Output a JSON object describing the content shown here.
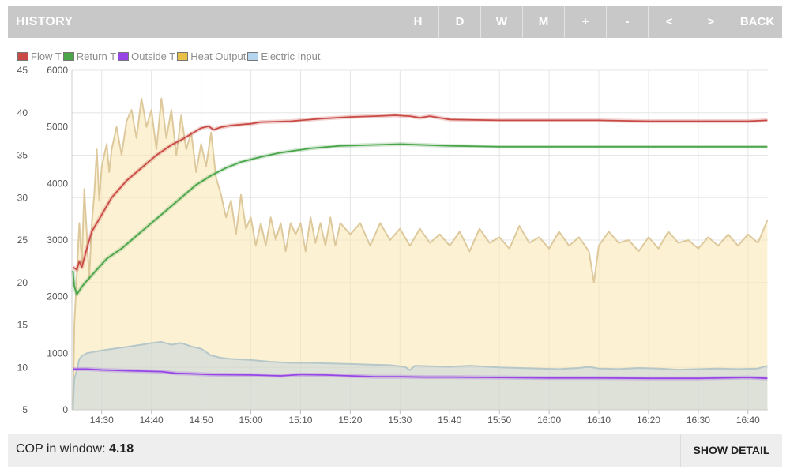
{
  "header": {
    "title": "HISTORY",
    "buttons": [
      "H",
      "D",
      "W",
      "M",
      "+",
      "-",
      "<",
      ">",
      "BACK"
    ]
  },
  "legend": [
    {
      "label": "Flow T",
      "color": "#c94a44"
    },
    {
      "label": "Return T",
      "color": "#4aa54a"
    },
    {
      "label": "Outside T",
      "color": "#9845e8"
    },
    {
      "label": "Heat Output",
      "color": "#e8c048"
    },
    {
      "label": "Electric Input",
      "color": "#b5d4ee"
    }
  ],
  "footer": {
    "cop_label": "COP in window:",
    "cop_value": "4.18",
    "show_detail": "SHOW DETAIL"
  },
  "chart_data": {
    "type": "line",
    "x_axis": {
      "unit": "minutes",
      "range": [
        864,
        1004
      ],
      "ticks": [
        {
          "label": "14:30",
          "value": 870
        },
        {
          "label": "14:40",
          "value": 880
        },
        {
          "label": "14:50",
          "value": 890
        },
        {
          "label": "15:00",
          "value": 900
        },
        {
          "label": "15:10",
          "value": 910
        },
        {
          "label": "15:20",
          "value": 920
        },
        {
          "label": "15:30",
          "value": 930
        },
        {
          "label": "15:40",
          "value": 940
        },
        {
          "label": "15:50",
          "value": 950
        },
        {
          "label": "16:00",
          "value": 960
        },
        {
          "label": "16:10",
          "value": 970
        },
        {
          "label": "16:20",
          "value": 980
        },
        {
          "label": "16:30",
          "value": 990
        },
        {
          "label": "16:40",
          "value": 1000
        }
      ]
    },
    "y_left": {
      "range": [
        5,
        45
      ],
      "ticks": [
        5,
        10,
        15,
        20,
        25,
        30,
        35,
        40,
        45
      ]
    },
    "y_right": {
      "range": [
        0,
        6000
      ],
      "ticks": [
        0,
        1000,
        2000,
        3000,
        4000,
        5000,
        6000
      ]
    },
    "grid": true,
    "legend_position": "top-left",
    "series": [
      {
        "name": "Flow T",
        "axis": "left",
        "color": "#c94a44",
        "points": [
          [
            864.2,
            21.8
          ],
          [
            865,
            21.5
          ],
          [
            865.5,
            22.5
          ],
          [
            866,
            21.8
          ],
          [
            867,
            24
          ],
          [
            868,
            26
          ],
          [
            870,
            28
          ],
          [
            872,
            30
          ],
          [
            875,
            32
          ],
          [
            878,
            33.5
          ],
          [
            881,
            35
          ],
          [
            884,
            36.2
          ],
          [
            886,
            36.8
          ],
          [
            888,
            37.5
          ],
          [
            890,
            38.2
          ],
          [
            891.5,
            38.4
          ],
          [
            892.5,
            38
          ],
          [
            894,
            38.3
          ],
          [
            896,
            38.5
          ],
          [
            900,
            38.7
          ],
          [
            902,
            38.9
          ],
          [
            908,
            39
          ],
          [
            914,
            39.3
          ],
          [
            920,
            39.5
          ],
          [
            925,
            39.6
          ],
          [
            929,
            39.7
          ],
          [
            932,
            39.6
          ],
          [
            934,
            39.4
          ],
          [
            936,
            39.6
          ],
          [
            940,
            39.2
          ],
          [
            950,
            39.1
          ],
          [
            960,
            39.1
          ],
          [
            970,
            39.1
          ],
          [
            980,
            39
          ],
          [
            990,
            39
          ],
          [
            1000,
            39
          ],
          [
            1003.9,
            39.1
          ]
        ]
      },
      {
        "name": "Return T",
        "axis": "left",
        "color": "#4aa54a",
        "points": [
          [
            864.2,
            21.4
          ],
          [
            864.5,
            19.5
          ],
          [
            865,
            18.6
          ],
          [
            866,
            19.5
          ],
          [
            867,
            20.2
          ],
          [
            869,
            21.5
          ],
          [
            871,
            22.8
          ],
          [
            874,
            24
          ],
          [
            877,
            25.5
          ],
          [
            880,
            27
          ],
          [
            883,
            28.5
          ],
          [
            886,
            30
          ],
          [
            889,
            31.5
          ],
          [
            892,
            32.6
          ],
          [
            895,
            33.5
          ],
          [
            898,
            34.2
          ],
          [
            902,
            34.8
          ],
          [
            906,
            35.3
          ],
          [
            912,
            35.8
          ],
          [
            918,
            36.1
          ],
          [
            924,
            36.2
          ],
          [
            930,
            36.3
          ],
          [
            940,
            36.1
          ],
          [
            950,
            36
          ],
          [
            960,
            36
          ],
          [
            970,
            36
          ],
          [
            980,
            36
          ],
          [
            990,
            36
          ],
          [
            1003.9,
            36
          ]
        ]
      },
      {
        "name": "Outside T",
        "axis": "left",
        "color": "#9845e8",
        "points": [
          [
            864.2,
            9.8
          ],
          [
            867,
            9.8
          ],
          [
            870,
            9.7
          ],
          [
            876,
            9.6
          ],
          [
            882,
            9.5
          ],
          [
            885,
            9.3
          ],
          [
            888,
            9.25
          ],
          [
            892,
            9.15
          ],
          [
            900,
            9.1
          ],
          [
            906,
            9.0
          ],
          [
            910,
            9.15
          ],
          [
            915,
            9.1
          ],
          [
            920,
            9.0
          ],
          [
            925,
            8.9
          ],
          [
            930,
            8.9
          ],
          [
            935,
            8.85
          ],
          [
            940,
            8.85
          ],
          [
            950,
            8.8
          ],
          [
            960,
            8.75
          ],
          [
            970,
            8.75
          ],
          [
            980,
            8.7
          ],
          [
            990,
            8.7
          ],
          [
            1000,
            8.8
          ],
          [
            1003.9,
            8.7
          ]
        ]
      },
      {
        "name": "Heat Output",
        "axis": "right",
        "color": "#e8c048",
        "points": [
          [
            864.2,
            0
          ],
          [
            864.5,
            1500
          ],
          [
            865,
            2400
          ],
          [
            865.5,
            3300
          ],
          [
            866,
            2600
          ],
          [
            866.5,
            3900
          ],
          [
            867,
            3100
          ],
          [
            867.5,
            2300
          ],
          [
            868,
            3300
          ],
          [
            868.5,
            3800
          ],
          [
            869,
            4600
          ],
          [
            869.5,
            3700
          ],
          [
            870,
            4300
          ],
          [
            871,
            4700
          ],
          [
            871.5,
            4200
          ],
          [
            872,
            4600
          ],
          [
            873,
            5000
          ],
          [
            874,
            4500
          ],
          [
            875,
            5100
          ],
          [
            876,
            5300
          ],
          [
            877,
            4800
          ],
          [
            878,
            5500
          ],
          [
            879,
            5000
          ],
          [
            880,
            5300
          ],
          [
            881,
            4600
          ],
          [
            882,
            5500
          ],
          [
            883,
            4800
          ],
          [
            884,
            5300
          ],
          [
            885,
            4500
          ],
          [
            886,
            5200
          ],
          [
            887,
            4600
          ],
          [
            888,
            4900
          ],
          [
            889,
            4200
          ],
          [
            890,
            4700
          ],
          [
            891,
            4300
          ],
          [
            892,
            4900
          ],
          [
            893,
            4100
          ],
          [
            894,
            3800
          ],
          [
            895,
            3400
          ],
          [
            896,
            3700
          ],
          [
            897,
            3100
          ],
          [
            898,
            3800
          ],
          [
            899,
            3200
          ],
          [
            900,
            3400
          ],
          [
            901,
            2900
          ],
          [
            902,
            3300
          ],
          [
            903,
            2900
          ],
          [
            904,
            3400
          ],
          [
            905,
            3000
          ],
          [
            906,
            3300
          ],
          [
            907,
            2800
          ],
          [
            908,
            3300
          ],
          [
            909,
            3100
          ],
          [
            910,
            3300
          ],
          [
            911,
            2800
          ],
          [
            912,
            3400
          ],
          [
            913,
            2950
          ],
          [
            914,
            3300
          ],
          [
            915,
            2900
          ],
          [
            916,
            3400
          ],
          [
            917,
            2900
          ],
          [
            918,
            3300
          ],
          [
            920,
            3100
          ],
          [
            922,
            3300
          ],
          [
            924,
            2900
          ],
          [
            926,
            3300
          ],
          [
            928,
            3000
          ],
          [
            930,
            3200
          ],
          [
            932,
            2900
          ],
          [
            934,
            3200
          ],
          [
            936,
            2950
          ],
          [
            938,
            3100
          ],
          [
            940,
            2900
          ],
          [
            942,
            3150
          ],
          [
            944,
            2800
          ],
          [
            946,
            3200
          ],
          [
            948,
            2950
          ],
          [
            950,
            3050
          ],
          [
            952,
            2850
          ],
          [
            954,
            3250
          ],
          [
            956,
            2950
          ],
          [
            958,
            3050
          ],
          [
            960,
            2850
          ],
          [
            962,
            3150
          ],
          [
            964,
            2900
          ],
          [
            966,
            3050
          ],
          [
            968,
            2800
          ],
          [
            969,
            2250
          ],
          [
            970,
            2900
          ],
          [
            972,
            3150
          ],
          [
            974,
            2950
          ],
          [
            976,
            3000
          ],
          [
            978,
            2800
          ],
          [
            980,
            3050
          ],
          [
            982,
            2850
          ],
          [
            984,
            3150
          ],
          [
            986,
            2950
          ],
          [
            988,
            3000
          ],
          [
            990,
            2850
          ],
          [
            992,
            3050
          ],
          [
            994,
            2900
          ],
          [
            996,
            3100
          ],
          [
            998,
            2900
          ],
          [
            1000,
            3100
          ],
          [
            1002,
            2950
          ],
          [
            1003.9,
            3350
          ]
        ]
      },
      {
        "name": "Electric Input",
        "axis": "right",
        "color": "#b5d4ee",
        "points": [
          [
            864.2,
            0
          ],
          [
            864.5,
            550
          ],
          [
            865,
            700
          ],
          [
            865.5,
            900
          ],
          [
            866,
            950
          ],
          [
            867,
            1000
          ],
          [
            870,
            1050
          ],
          [
            874,
            1100
          ],
          [
            878,
            1150
          ],
          [
            880,
            1180
          ],
          [
            882,
            1200
          ],
          [
            884,
            1150
          ],
          [
            886,
            1180
          ],
          [
            888,
            1120
          ],
          [
            890,
            1080
          ],
          [
            892,
            960
          ],
          [
            894,
            920
          ],
          [
            896,
            900
          ],
          [
            900,
            880
          ],
          [
            904,
            850
          ],
          [
            908,
            830
          ],
          [
            912,
            830
          ],
          [
            916,
            820
          ],
          [
            920,
            810
          ],
          [
            924,
            800
          ],
          [
            928,
            790
          ],
          [
            931,
            760
          ],
          [
            932,
            700
          ],
          [
            933,
            780
          ],
          [
            936,
            770
          ],
          [
            940,
            760
          ],
          [
            944,
            780
          ],
          [
            948,
            760
          ],
          [
            950,
            750
          ],
          [
            954,
            740
          ],
          [
            958,
            730
          ],
          [
            962,
            720
          ],
          [
            966,
            740
          ],
          [
            968,
            760
          ],
          [
            970,
            730
          ],
          [
            974,
            720
          ],
          [
            978,
            740
          ],
          [
            982,
            730
          ],
          [
            986,
            710
          ],
          [
            990,
            720
          ],
          [
            994,
            730
          ],
          [
            998,
            720
          ],
          [
            1002,
            730
          ],
          [
            1003.9,
            780
          ]
        ]
      }
    ]
  }
}
